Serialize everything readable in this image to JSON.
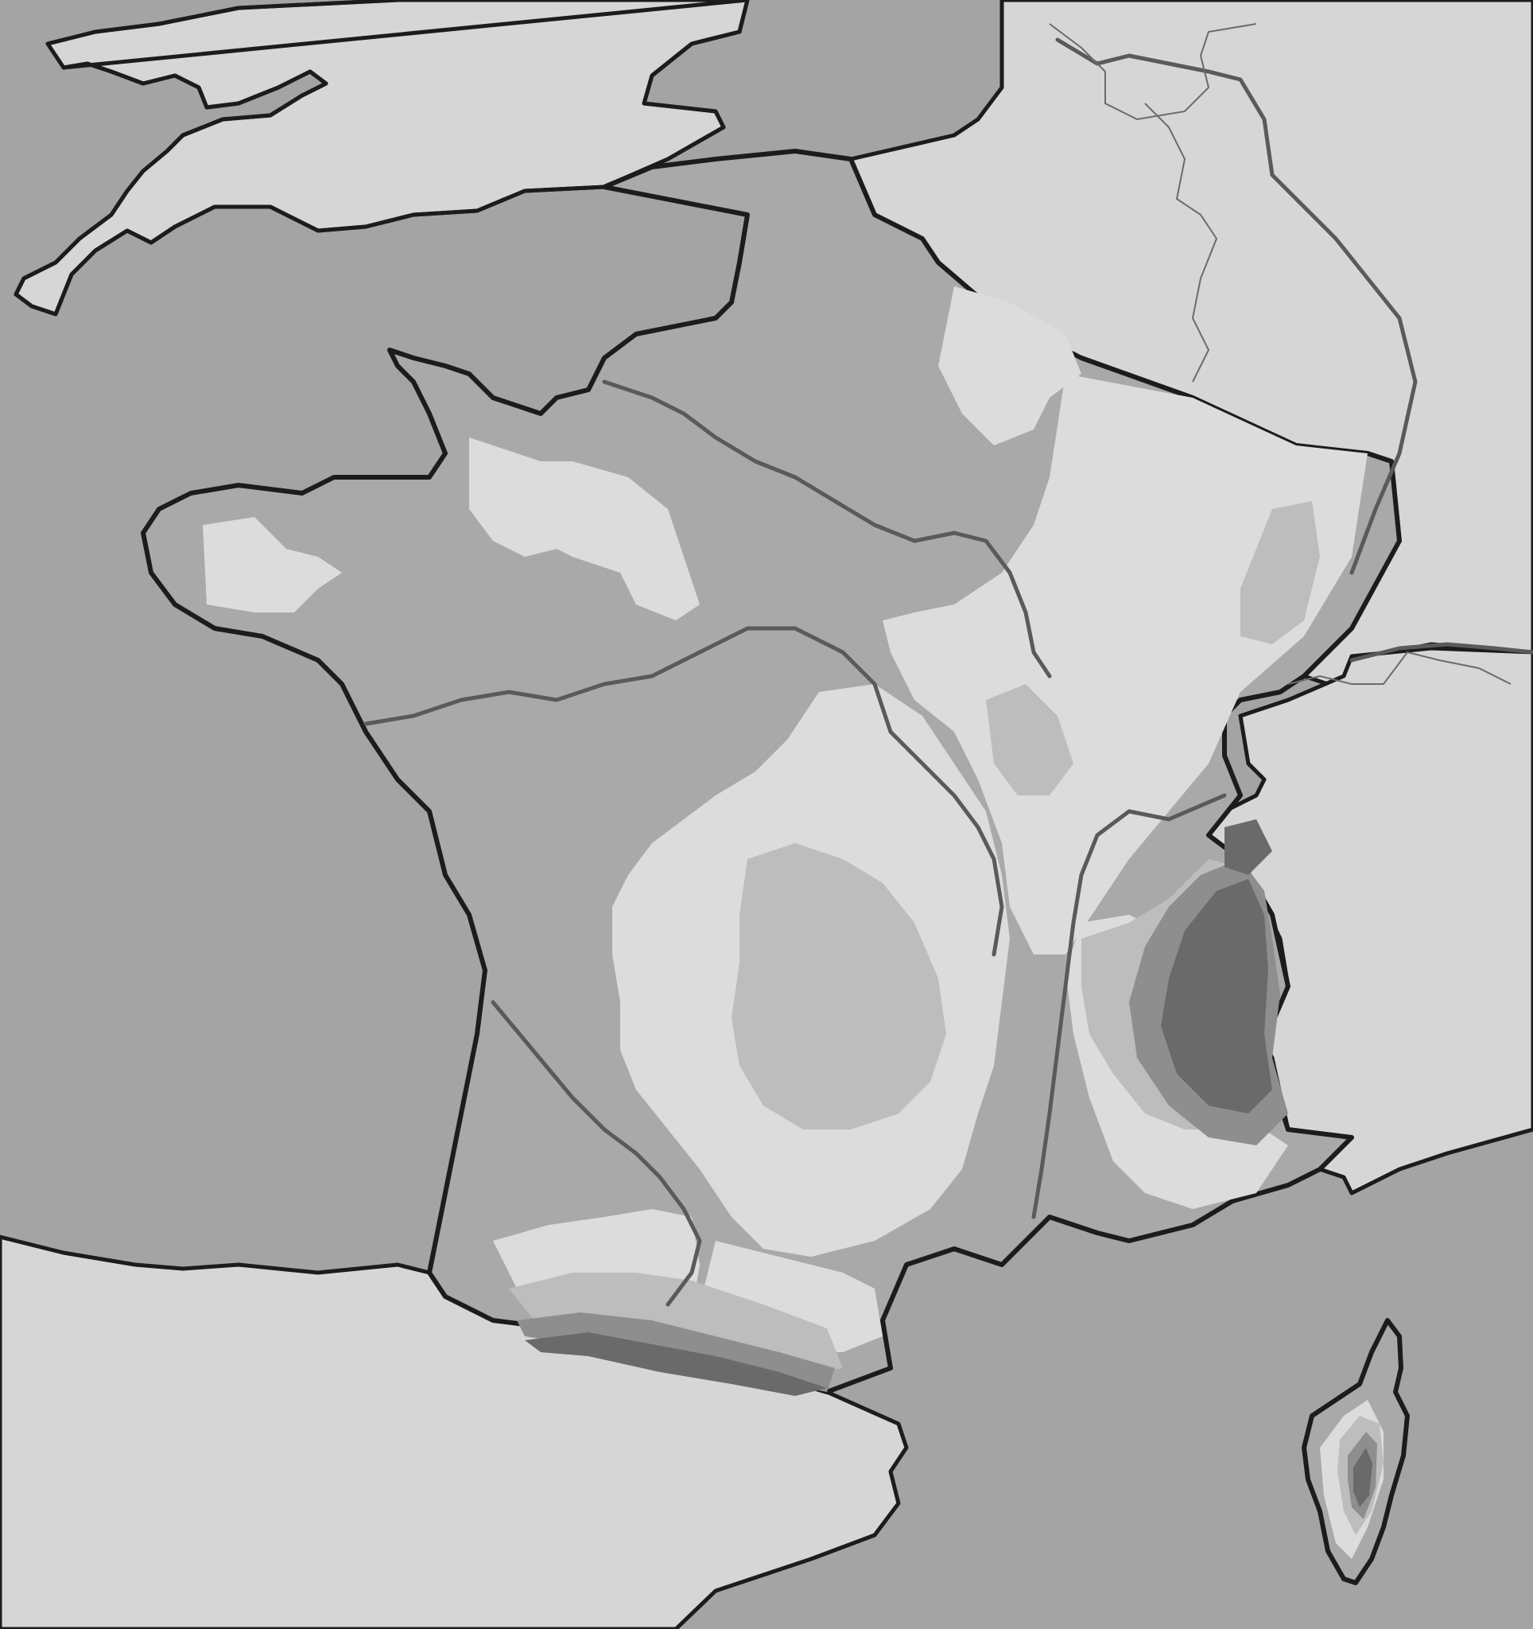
{
  "map": {
    "type": "physical-relief-map",
    "region": "France",
    "labels": [],
    "colors": {
      "sea": "#a4a4a4",
      "foreign_land": "#d6d6d6",
      "lowland": "#a9a9a9",
      "plateau": "#dcdcdc",
      "hills": "#bdbdbd",
      "high_mountains": "#8e8e8e",
      "peaks": "#6a6a6a"
    },
    "features": {
      "seas": [
        "english-channel",
        "bay-of-biscay",
        "mediterranean-sea"
      ],
      "foreign_lands": [
        "england",
        "belgium-germany",
        "switzerland",
        "italy",
        "spain"
      ],
      "rivers": [
        "seine",
        "loire",
        "garonne",
        "rhone",
        "rhine"
      ],
      "islands": [
        "corsica"
      ]
    }
  }
}
